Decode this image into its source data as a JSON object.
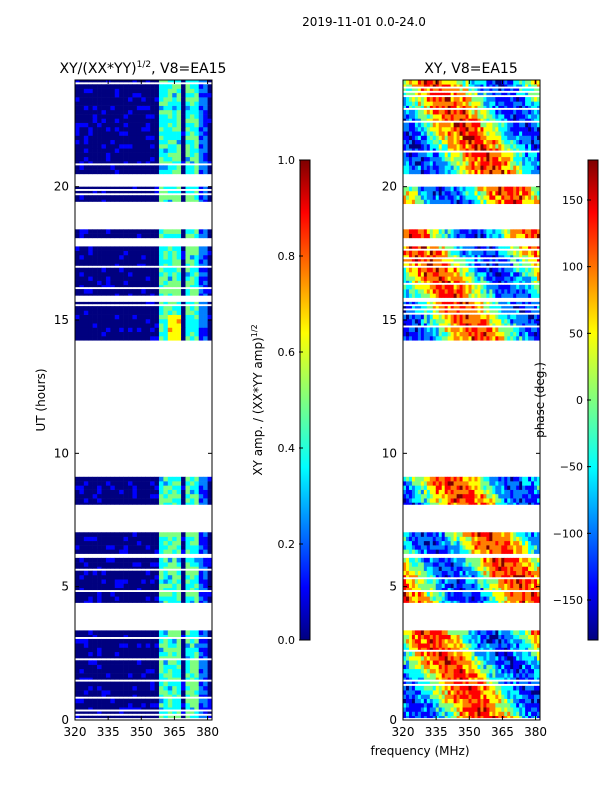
{
  "suptitle": "2019-11-01 0.0-24.0",
  "xlabel_shared": "frequency (MHz)",
  "colors": {
    "jet": [
      "#00007f",
      "#0000ff",
      "#007fff",
      "#00ffff",
      "#7fff7f",
      "#ffff00",
      "#ff7f00",
      "#ff0000",
      "#7f0000"
    ]
  },
  "chart_data": [
    {
      "id": "amp",
      "type": "heatmap",
      "title_main": "XY/(XX*YY)",
      "title_sup": "1/2",
      "title_rest": ", V8=EA15",
      "ylabel": "UT (hours)",
      "xlim": [
        320,
        382
      ],
      "ylim": [
        0,
        24
      ],
      "xticks": [
        320,
        335,
        350,
        365,
        380
      ],
      "yticks": [
        0,
        5,
        10,
        15,
        20
      ],
      "colorbar": {
        "label_main": "XY amp. / (XX*YY amp)",
        "label_sup": "1/2",
        "range": [
          0.0,
          1.0
        ],
        "ticks": [
          "0.0",
          "0.2",
          "0.4",
          "0.6",
          "0.8",
          "1.0"
        ],
        "tick_values": [
          0.0,
          0.2,
          0.4,
          0.6,
          0.8,
          1.0
        ]
      },
      "gaps_hours": [
        [
          3.35,
          4.2
        ],
        [
          6.0,
          6.2
        ],
        [
          6.95,
          7.85
        ],
        [
          9.0,
          14.1
        ],
        [
          15.55,
          15.7
        ],
        [
          17.75,
          18.0
        ],
        [
          18.4,
          19.25
        ],
        [
          19.85,
          20.45
        ],
        [
          24.0,
          24.0
        ]
      ],
      "bright_band_mhz": [
        [
          359,
          363
        ],
        [
          364,
          368
        ],
        [
          371,
          375
        ]
      ]
    },
    {
      "id": "phase",
      "type": "heatmap",
      "title": "XY, V8=EA15",
      "xlim": [
        320,
        382
      ],
      "ylim": [
        0,
        24
      ],
      "xticks": [
        320,
        335,
        350,
        365,
        380
      ],
      "yticks": [
        0,
        5,
        10,
        15,
        20
      ],
      "xlabel": "frequency (MHz)",
      "colorbar": {
        "label": "phase (deg.)",
        "range": [
          -180,
          180
        ],
        "ticks": [
          "150",
          "100",
          "50",
          "0",
          "−50",
          "−100",
          "−150"
        ],
        "tick_values": [
          150,
          100,
          50,
          0,
          -50,
          -100,
          -150
        ]
      },
      "gaps_hours": [
        [
          3.35,
          4.2
        ],
        [
          6.0,
          6.2
        ],
        [
          6.95,
          7.85
        ],
        [
          9.0,
          14.1
        ],
        [
          15.55,
          15.7
        ],
        [
          17.75,
          18.0
        ],
        [
          18.4,
          19.25
        ],
        [
          19.85,
          20.45
        ]
      ]
    }
  ]
}
